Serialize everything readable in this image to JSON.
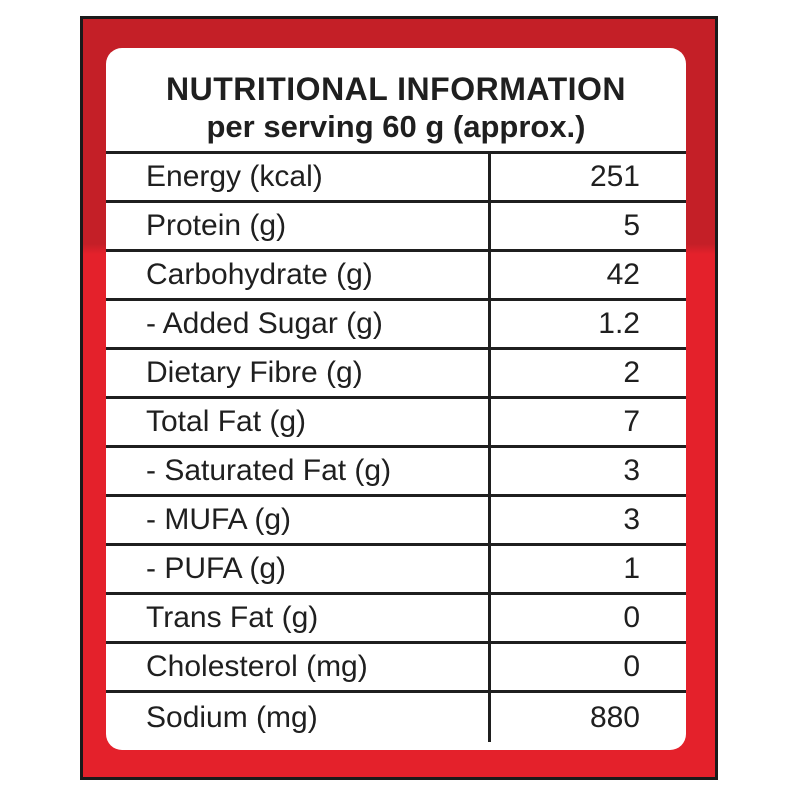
{
  "label": {
    "title": "NUTRITIONAL INFORMATION",
    "subtitle": "per serving 60 g (approx.)",
    "rows": [
      {
        "nutrient": "Energy (kcal)",
        "value": "251"
      },
      {
        "nutrient": "Protein (g)",
        "value": "5"
      },
      {
        "nutrient": "Carbohydrate (g)",
        "value": "42"
      },
      {
        "nutrient": "- Added Sugar (g)",
        "value": "1.2"
      },
      {
        "nutrient": "Dietary Fibre (g)",
        "value": "2"
      },
      {
        "nutrient": "Total Fat (g)",
        "value": "7"
      },
      {
        "nutrient": "- Saturated Fat (g)",
        "value": "3"
      },
      {
        "nutrient": "- MUFA (g)",
        "value": "3"
      },
      {
        "nutrient": "- PUFA (g)",
        "value": "1"
      },
      {
        "nutrient": "Trans Fat (g)",
        "value": "0"
      },
      {
        "nutrient": "Cholesterol (mg)",
        "value": "0"
      },
      {
        "nutrient": "Sodium (mg)",
        "value": "880"
      }
    ]
  },
  "colors": {
    "frame_red_top": "#c41f27",
    "frame_red_bottom": "#e4212b",
    "text": "#1f1f1f",
    "panel": "#ffffff"
  }
}
